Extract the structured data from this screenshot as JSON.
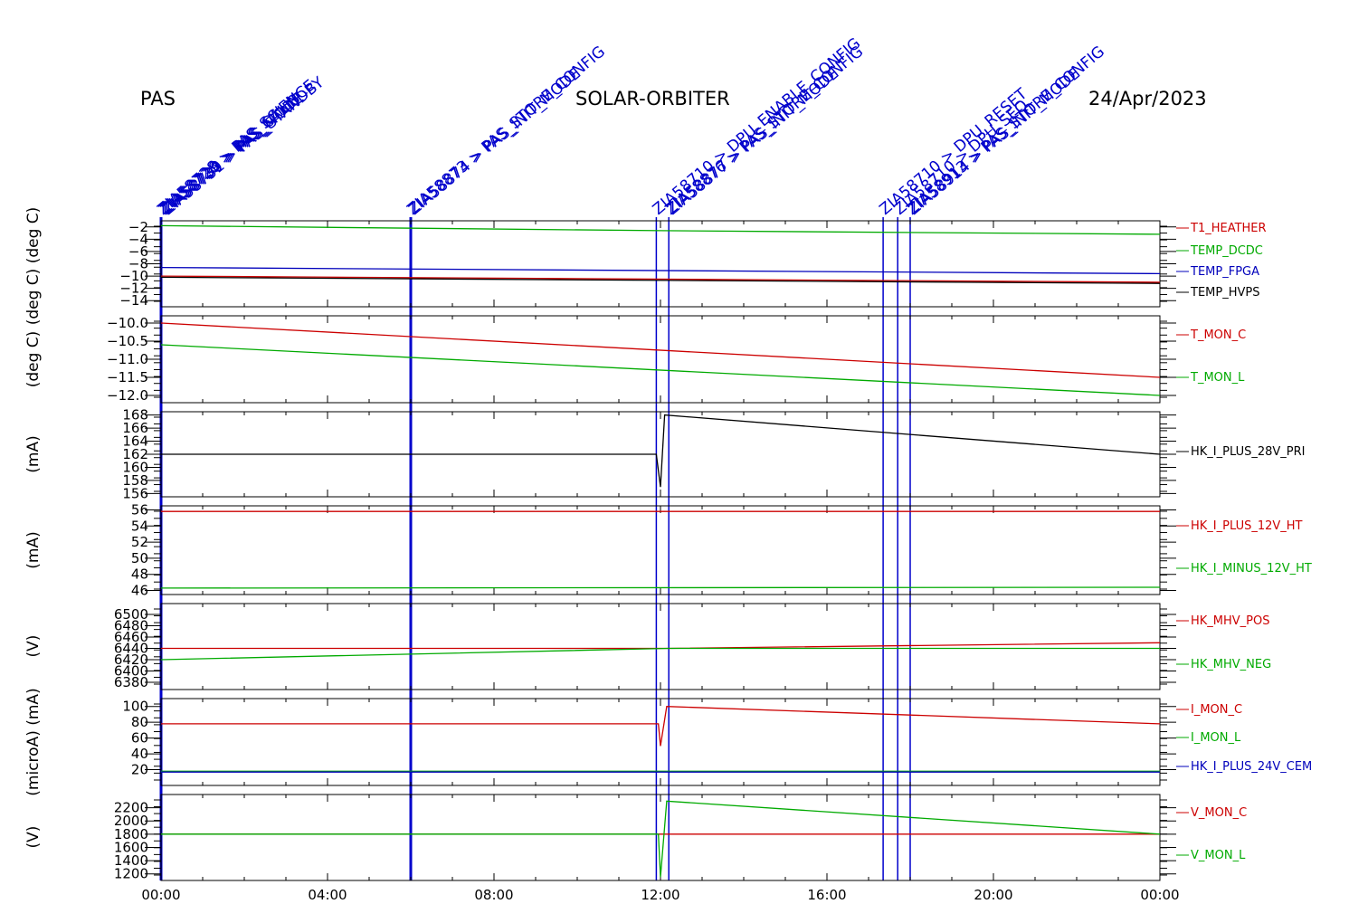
{
  "header": {
    "left": "PAS",
    "center": "SOLAR-ORBITER",
    "right": "24/Apr/2023"
  },
  "colors": {
    "red": "#cc0000",
    "green": "#00aa00",
    "blue": "#0000bb",
    "black": "#000000",
    "annotation": "#0000cc"
  },
  "chart_data": {
    "type": "line",
    "x_axis": {
      "range_hours": [
        0,
        24
      ],
      "tick_labels": [
        "00:00",
        "04:00",
        "08:00",
        "12:00",
        "16:00",
        "20:00",
        "00:00"
      ]
    },
    "annotations": [
      {
        "hour": 0.0,
        "texts": [
          "ZIA58728 > PAS_SCIENCE",
          "ZIA58729 > PAS_CALIB",
          "ZIA58730 > PAS_MODE",
          "ZIA58731 > PAS_STANDBY"
        ]
      },
      {
        "hour": 6.0,
        "texts": [
          "ZIA58873 > PAS_STORE_CONFIG",
          "ZIA58874 > PAS_INIT_MODE"
        ]
      },
      {
        "hour": 11.9,
        "texts": [
          "ZIA58710 > DPU_ENABLE_CONFIG"
        ]
      },
      {
        "hour": 12.2,
        "texts": [
          "ZIA58876 > PAS_STORE_CONFIG",
          "ZIA58877 > PAS_INIT_MODE"
        ]
      },
      {
        "hour": 17.35,
        "texts": [
          "ZIA58710 > DPU_RESET"
        ]
      },
      {
        "hour": 17.7,
        "texts": [
          "ZIA58710 > DPU_SEQ"
        ]
      },
      {
        "hour": 18.0,
        "texts": [
          "ZIA58913 > PAS_STORE_CONFIG",
          "ZIA58914 > PAS_INIT_MODE"
        ]
      }
    ],
    "panels": [
      {
        "ylabel": "(deg C) (deg C)",
        "ylim": [
          -15,
          -1
        ],
        "ticks": [
          -2,
          -4,
          -6,
          -8,
          -10,
          -12,
          -14
        ],
        "tick_labels": [
          "−2",
          "−4",
          "−6",
          "−8",
          "−10",
          "−12",
          "−14"
        ],
        "series": [
          {
            "name": "T1_HEATHER",
            "color": "red",
            "x": [
              0,
              24
            ],
            "y": [
              -10.0,
              -11.0
            ]
          },
          {
            "name": "TEMP_DCDC",
            "color": "green",
            "x": [
              0,
              12,
              24
            ],
            "y": [
              -1.8,
              -2.6,
              -3.2
            ]
          },
          {
            "name": "TEMP_FPGA",
            "color": "blue",
            "x": [
              0,
              24
            ],
            "y": [
              -8.6,
              -9.6
            ]
          },
          {
            "name": "TEMP_HVPS",
            "color": "black",
            "x": [
              0,
              24
            ],
            "y": [
              -10.2,
              -11.2
            ]
          }
        ]
      },
      {
        "ylabel": "(deg C)",
        "ylim": [
          -12.2,
          -9.8
        ],
        "ticks": [
          -10.0,
          -10.5,
          -11.0,
          -11.5,
          -12.0
        ],
        "tick_labels": [
          "−10.0",
          "−10.5",
          "−11.0",
          "−11.5",
          "−12.0"
        ],
        "series": [
          {
            "name": "T_MON_C",
            "color": "red",
            "x": [
              0,
              24
            ],
            "y": [
              -10.0,
              -11.5
            ]
          },
          {
            "name": "T_MON_L",
            "color": "green",
            "x": [
              0,
              24
            ],
            "y": [
              -10.6,
              -12.0
            ]
          }
        ]
      },
      {
        "ylabel": "(mA)",
        "ylim": [
          155.5,
          168.5
        ],
        "ticks": [
          168,
          166,
          164,
          162,
          160,
          158,
          156
        ],
        "tick_labels": [
          "168",
          "166",
          "164",
          "162",
          "160",
          "158",
          "156"
        ],
        "series": [
          {
            "name": "HK_I_PLUS_28V_PRI",
            "color": "black",
            "x": [
              0,
              11.9,
              12.0,
              12.1,
              24
            ],
            "y": [
              162,
              162,
              157,
              168,
              162
            ]
          }
        ]
      },
      {
        "ylabel": "(mA)",
        "ylim": [
          45.5,
          56.5
        ],
        "ticks": [
          56,
          54,
          52,
          50,
          48,
          46
        ],
        "tick_labels": [
          "56",
          "54",
          "52",
          "50",
          "48",
          "46"
        ],
        "series": [
          {
            "name": "HK_I_PLUS_12V_HT",
            "color": "red",
            "x": [
              0,
              24
            ],
            "y": [
              55.8,
              55.8
            ]
          },
          {
            "name": "HK_I_MINUS_12V_HT",
            "color": "green",
            "x": [
              0,
              24
            ],
            "y": [
              46.3,
              46.4
            ]
          }
        ]
      },
      {
        "ylabel": "(V)",
        "ylim": [
          -6500,
          6500
        ],
        "ticks": [
          6500,
          6480,
          6460,
          6440,
          6420,
          6400,
          6380
        ],
        "tick_labels": [
          "6500",
          "6480",
          "6460",
          "6440",
          "6420",
          "6400",
          "6380"
        ],
        "series": [
          {
            "name": "HK_MHV_POS",
            "color": "red",
            "x": [
              0,
              12.2,
              24
            ],
            "y": [
              6440,
              6440,
              6450
            ]
          },
          {
            "name": "HK_MHV_NEG",
            "color": "green",
            "x": [
              0,
              12.2,
              24
            ],
            "y": [
              6420,
              6440,
              6440
            ]
          }
        ]
      },
      {
        "ylabel": "(microA) (mA)",
        "ylim": [
          0,
          110
        ],
        "ticks": [
          100,
          80,
          60,
          40,
          20
        ],
        "tick_labels": [
          "100",
          "80",
          "60",
          "40",
          "20"
        ],
        "series": [
          {
            "name": "I_MON_C",
            "color": "red",
            "x": [
              0,
              11.95,
              12.0,
              12.15,
              24
            ],
            "y": [
              78,
              78,
              50,
              100,
              78
            ]
          },
          {
            "name": "I_MON_L",
            "color": "green",
            "x": [
              0,
              24
            ],
            "y": [
              18,
              18
            ]
          },
          {
            "name": "HK_I_PLUS_24V_CEM",
            "color": "blue",
            "x": [
              0,
              24
            ],
            "y": [
              17,
              17
            ]
          }
        ]
      },
      {
        "ylabel": "(V)",
        "ylim": [
          1100,
          2400
        ],
        "ticks": [
          2200,
          2000,
          1800,
          1600,
          1400,
          1200
        ],
        "tick_labels": [
          "2200",
          "2000",
          "1800",
          "1600",
          "1400",
          "1200"
        ],
        "series": [
          {
            "name": "V_MON_C",
            "color": "red",
            "x": [
              0,
              24
            ],
            "y": [
              1800,
              1800
            ]
          },
          {
            "name": "V_MON_L",
            "color": "green",
            "x": [
              0,
              11.95,
              12.0,
              12.15,
              24
            ],
            "y": [
              1800,
              1800,
              1150,
              2300,
              1800
            ]
          }
        ]
      }
    ]
  }
}
